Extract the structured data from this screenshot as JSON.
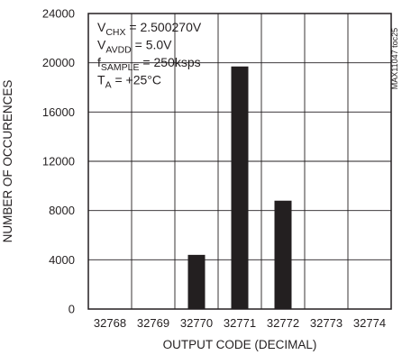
{
  "chart_data": {
    "type": "bar",
    "categories": [
      "32768",
      "32769",
      "32770",
      "32771",
      "32772",
      "32773",
      "32774"
    ],
    "values": [
      0,
      0,
      4400,
      19700,
      8800,
      0,
      0
    ],
    "xlabel": "OUTPUT CODE (DECIMAL)",
    "ylabel": "NUMBER OF OCCURENCES",
    "ylim": [
      0,
      24000
    ],
    "yticks": [
      0,
      4000,
      8000,
      12000,
      16000,
      20000,
      24000
    ],
    "grid": true,
    "bar_color": "#231f20",
    "annotations": [
      {
        "id": "vchx",
        "base": "V",
        "sub": "CHX",
        "rest": " = 2.500270V"
      },
      {
        "id": "vavdd",
        "base": "V",
        "sub": "AVDD",
        "rest": " = 5.0V"
      },
      {
        "id": "fsample",
        "base": "f",
        "sub": "SAMPLE",
        "rest": " = 250ksps"
      },
      {
        "id": "ta",
        "base": "T",
        "sub": "A",
        "rest": " = +25°C"
      }
    ],
    "figure_id": "MAX11047 toc25"
  }
}
